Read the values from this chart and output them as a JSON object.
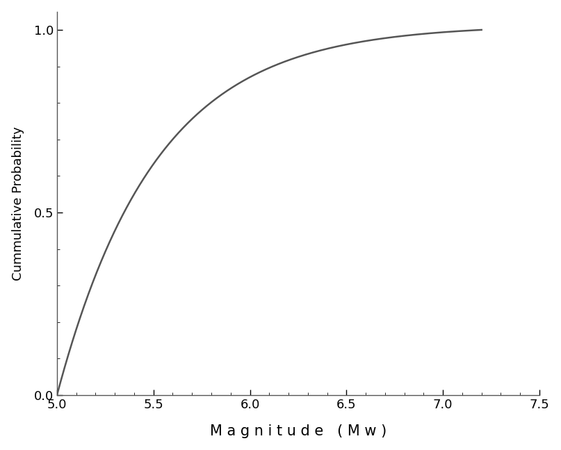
{
  "b_value": 0.85,
  "m_min": 5.0,
  "m_max": 7.2,
  "x_min": 5.0,
  "x_max": 7.5,
  "y_min": 0.0,
  "y_max": 1.05,
  "xlabel": "M a g n i t u d e   ( M w )",
  "ylabel": "Cummulative Probability",
  "line_color": "#555555",
  "line_width": 1.8,
  "background_color": "#ffffff",
  "xlabel_fontsize": 15,
  "ylabel_fontsize": 13,
  "tick_fontsize": 13,
  "xticks": [
    5.0,
    5.5,
    6.0,
    6.5,
    7.0,
    7.5
  ],
  "yticks": [
    0.0,
    0.5,
    1.0
  ]
}
